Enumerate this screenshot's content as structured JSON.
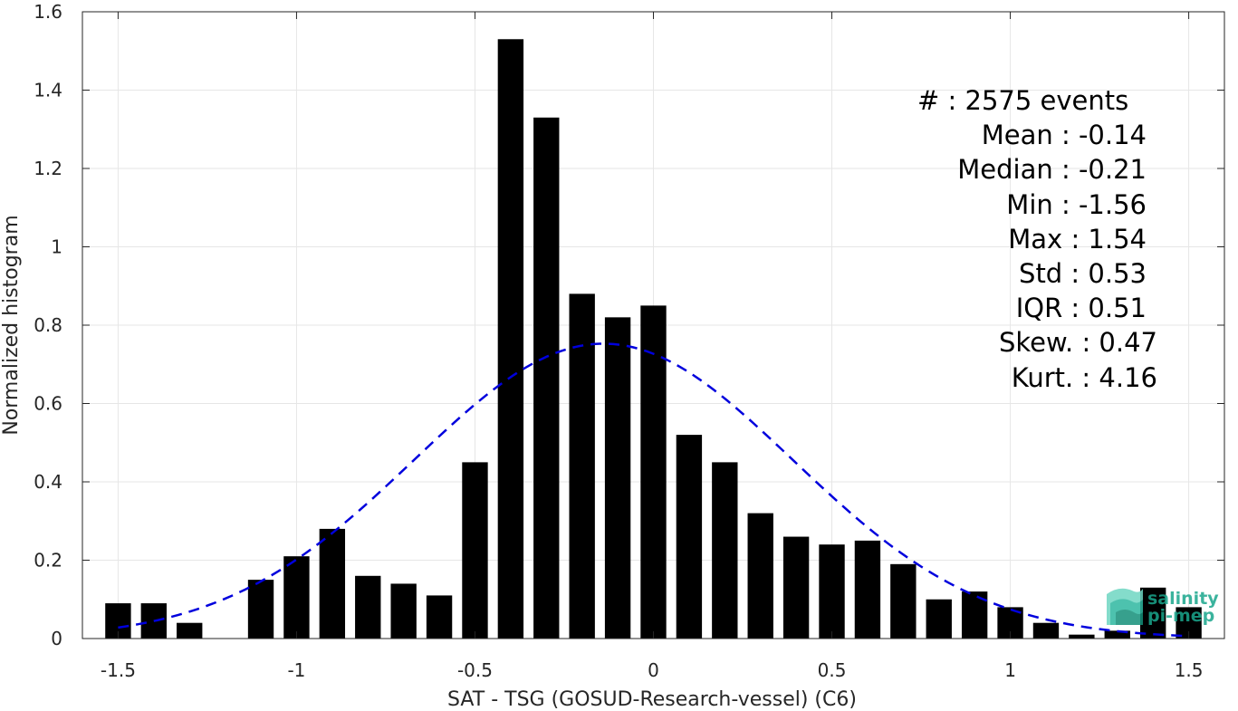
{
  "chart_data": {
    "type": "bar",
    "xlabel": "SAT - TSG (GOSUD-Research-vessel) (C6)",
    "ylabel": "Normalized histogram",
    "xlim": [
      -1.6,
      1.6
    ],
    "ylim": [
      0,
      1.6
    ],
    "grid": true,
    "bin_width": 0.1,
    "x_ticks": [
      -1.5,
      -1,
      -0.5,
      0,
      0.5,
      1,
      1.5
    ],
    "x_tick_labels": [
      "-1.5",
      "-1",
      "-0.5",
      "0",
      "0.5",
      "1",
      "1.5"
    ],
    "y_ticks": [
      0,
      0.2,
      0.4,
      0.6,
      0.8,
      1,
      1.2,
      1.4,
      1.6
    ],
    "y_tick_labels": [
      "0",
      "0.2",
      "0.4",
      "0.6",
      "0.8",
      "1",
      "1.2",
      "1.4",
      "1.6"
    ],
    "bins": [
      {
        "x": -1.5,
        "y": 0.09
      },
      {
        "x": -1.4,
        "y": 0.09
      },
      {
        "x": -1.3,
        "y": 0.04
      },
      {
        "x": -1.2,
        "y": 0
      },
      {
        "x": -1.1,
        "y": 0.15
      },
      {
        "x": -1.0,
        "y": 0.21
      },
      {
        "x": -0.9,
        "y": 0.28
      },
      {
        "x": -0.8,
        "y": 0.16
      },
      {
        "x": -0.7,
        "y": 0.14
      },
      {
        "x": -0.6,
        "y": 0.11
      },
      {
        "x": -0.5,
        "y": 0.45
      },
      {
        "x": -0.4,
        "y": 1.53
      },
      {
        "x": -0.3,
        "y": 1.33
      },
      {
        "x": -0.2,
        "y": 0.88
      },
      {
        "x": -0.1,
        "y": 0.82
      },
      {
        "x": 0.0,
        "y": 0.85
      },
      {
        "x": 0.1,
        "y": 0.52
      },
      {
        "x": 0.2,
        "y": 0.45
      },
      {
        "x": 0.3,
        "y": 0.32
      },
      {
        "x": 0.4,
        "y": 0.26
      },
      {
        "x": 0.5,
        "y": 0.24
      },
      {
        "x": 0.6,
        "y": 0.25
      },
      {
        "x": 0.7,
        "y": 0.19
      },
      {
        "x": 0.8,
        "y": 0.1
      },
      {
        "x": 0.9,
        "y": 0.12
      },
      {
        "x": 1.0,
        "y": 0.08
      },
      {
        "x": 1.1,
        "y": 0.04
      },
      {
        "x": 1.2,
        "y": 0.01
      },
      {
        "x": 1.3,
        "y": 0.02
      },
      {
        "x": 1.4,
        "y": 0.13
      },
      {
        "x": 1.5,
        "y": 0.08
      }
    ],
    "normal_fit": {
      "mean": -0.14,
      "std": 0.53,
      "x_range": [
        -1.5,
        1.5
      ],
      "style": "dashed",
      "color": "#0000dd"
    },
    "bar_color": "#000000",
    "stats": [
      "#  : 2575 events",
      "Mean : -0.14",
      "Median : -0.21",
      "Min : -1.56",
      "Max : 1.54",
      "Std : 0.53",
      "IQR : 0.51",
      "Skew. : 0.47",
      "Kurt. : 4.16"
    ]
  },
  "logo": {
    "line1": "salinity",
    "line2": "pi-mep",
    "color": "#1aa68c"
  }
}
